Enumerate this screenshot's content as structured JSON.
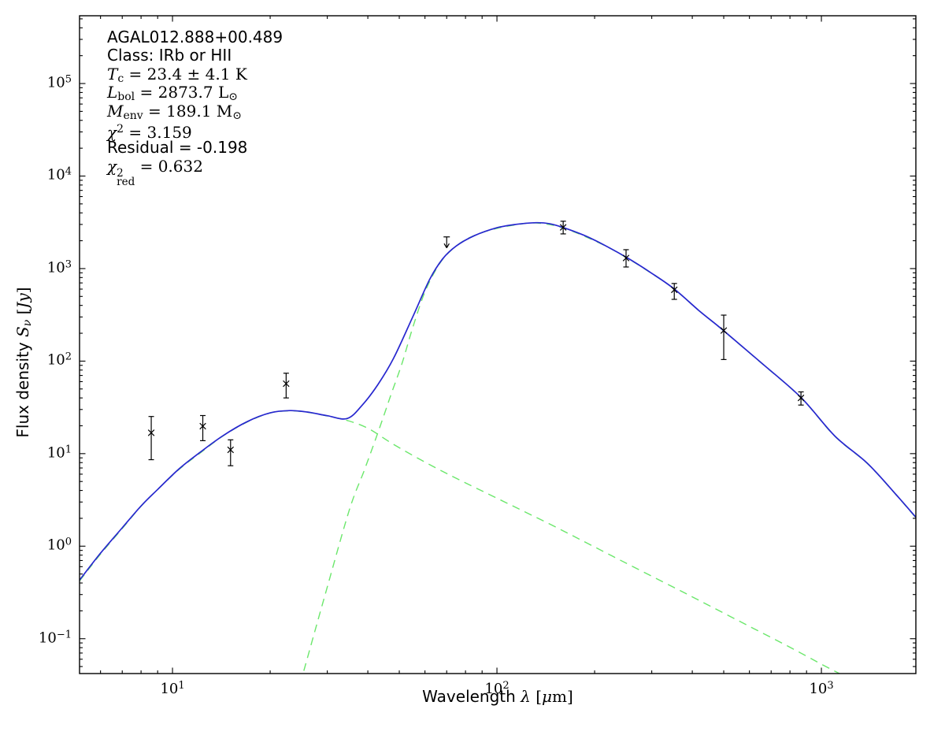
{
  "figure": {
    "background": "#ffffff",
    "frame_color": "#000000",
    "annotation_lines": [
      {
        "name": "source-name",
        "parts": [
          {
            "t": "AGAL012.888+00.489",
            "f": "sans"
          }
        ]
      },
      {
        "name": "source-class",
        "parts": [
          {
            "t": "Class: IRb or HII",
            "f": "sans"
          }
        ]
      },
      {
        "name": "dust-temperature",
        "parts": [
          {
            "t": "T",
            "f": "it"
          },
          {
            "t": "c",
            "f": "sub"
          },
          {
            "t": " = 23.4 ± 4.1 K",
            "f": "rm"
          }
        ]
      },
      {
        "name": "bolometric-luminosity",
        "parts": [
          {
            "t": "L",
            "f": "it"
          },
          {
            "t": "bol",
            "f": "sub"
          },
          {
            "t": " = 2873.7 L",
            "f": "rm"
          },
          {
            "t": "⊙",
            "f": "sub"
          }
        ]
      },
      {
        "name": "envelope-mass",
        "parts": [
          {
            "t": "M",
            "f": "it"
          },
          {
            "t": "env",
            "f": "sub"
          },
          {
            "t": " = 189.1 M",
            "f": "rm"
          },
          {
            "t": "⊙",
            "f": "sub"
          }
        ]
      },
      {
        "name": "chi-square",
        "parts": [
          {
            "t": "χ",
            "f": "it"
          },
          {
            "t": "2",
            "f": "sup"
          },
          {
            "t": " = 3.159",
            "f": "rm"
          }
        ]
      },
      {
        "name": "residual",
        "parts": [
          {
            "t": "Residual = -0.198",
            "f": "sans"
          }
        ]
      },
      {
        "name": "reduced-chi-square",
        "parts": [
          {
            "t": "χ",
            "f": "it"
          },
          {
            "t": "2",
            "f": "stack",
            "sub": "red"
          },
          {
            "t": " = 0.632",
            "f": "rm"
          }
        ]
      }
    ],
    "xlabel_parts": [
      {
        "t": "Wavelength ",
        "f": "sans"
      },
      {
        "t": "λ",
        "f": "it"
      },
      {
        "t": " [",
        "f": "rm"
      },
      {
        "t": "μ",
        "f": "it"
      },
      {
        "t": "m]",
        "f": "rm"
      }
    ],
    "ylabel_parts": [
      {
        "t": "Flux density ",
        "f": "sans"
      },
      {
        "t": "S",
        "f": "it"
      },
      {
        "t": "ν",
        "f": "subit"
      },
      {
        "t": " [",
        "f": "rm"
      },
      {
        "t": "Jy",
        "f": "it"
      },
      {
        "t": "]",
        "f": "rm"
      }
    ],
    "x_tick_labels": [
      {
        "value": 10,
        "base": "10",
        "exp": "1"
      },
      {
        "value": 100,
        "base": "10",
        "exp": "2"
      },
      {
        "value": 1000,
        "base": "10",
        "exp": "3"
      }
    ],
    "y_tick_labels": [
      {
        "value": 0.1,
        "base": "10",
        "exp": "−1"
      },
      {
        "value": 1,
        "base": "10",
        "exp": "0"
      },
      {
        "value": 10,
        "base": "10",
        "exp": "1"
      },
      {
        "value": 100,
        "base": "10",
        "exp": "2"
      },
      {
        "value": 1000,
        "base": "10",
        "exp": "3"
      },
      {
        "value": 10000,
        "base": "10",
        "exp": "4"
      },
      {
        "value": 100000,
        "base": "10",
        "exp": "5"
      }
    ]
  },
  "chart_data": {
    "type": "line",
    "title": "AGAL012.888+00.489",
    "xlabel": "Wavelength λ [μm]",
    "ylabel": "Flux density Sν [Jy]",
    "xscale": "log",
    "yscale": "log",
    "xlim": [
      5.17,
      1955
    ],
    "ylim": [
      0.042,
      540000
    ],
    "grid": false,
    "legend": "none",
    "colors": {
      "total_fit": "#2727cf",
      "components": "#6be76b",
      "data_points": "#000000",
      "frame": "#000000"
    },
    "series": [
      {
        "name": "cold-component-greybody",
        "type": "line",
        "style": "dashed",
        "color": "#6be76b",
        "points": [
          [
            25.4,
            0.045
          ],
          [
            29.3,
            0.27
          ],
          [
            35,
            2.4
          ],
          [
            39,
            6.6
          ],
          [
            43,
            17
          ],
          [
            47,
            42
          ],
          [
            51,
            95
          ],
          [
            55,
            230
          ],
          [
            60,
            560
          ],
          [
            66,
            1080
          ],
          [
            72,
            1560
          ],
          [
            80,
            2050
          ],
          [
            90,
            2450
          ],
          [
            100,
            2720
          ],
          [
            115,
            2980
          ],
          [
            132,
            3110
          ],
          [
            160,
            2750
          ],
          [
            207,
            1890
          ],
          [
            250,
            1320
          ],
          [
            300,
            885
          ],
          [
            352,
            600
          ],
          [
            420,
            349
          ],
          [
            500,
            212
          ],
          [
            650,
            96.5
          ],
          [
            865,
            40.2
          ],
          [
            1100,
            15.4
          ],
          [
            1384,
            7.85
          ],
          [
            1700,
            3.58
          ],
          [
            1955,
            2.03
          ]
        ]
      },
      {
        "name": "hot-component-blackbody",
        "type": "line",
        "style": "dashed",
        "color": "#6be76b",
        "points": [
          [
            5.17,
            0.42
          ],
          [
            6,
            0.82
          ],
          [
            7,
            1.55
          ],
          [
            8,
            2.7
          ],
          [
            9,
            4.1
          ],
          [
            10.5,
            6.8
          ],
          [
            12.1,
            10
          ],
          [
            14.3,
            15.5
          ],
          [
            17,
            22
          ],
          [
            20,
            27.5
          ],
          [
            23,
            29
          ],
          [
            26,
            28
          ],
          [
            30,
            25.5
          ],
          [
            34.6,
            22.8
          ],
          [
            40,
            18.8
          ],
          [
            48,
            12.6
          ],
          [
            60,
            8.1
          ],
          [
            75,
            5.4
          ],
          [
            100,
            3.3
          ],
          [
            148,
            1.68
          ],
          [
            200,
            0.98
          ],
          [
            258,
            0.62
          ],
          [
            350,
            0.36
          ],
          [
            451,
            0.228
          ],
          [
            600,
            0.136
          ],
          [
            789,
            0.083
          ],
          [
            1000,
            0.053
          ],
          [
            1137,
            0.042
          ]
        ]
      },
      {
        "name": "total-fit",
        "type": "line",
        "style": "solid",
        "color": "#2727cf",
        "points": [
          [
            5.17,
            0.43
          ],
          [
            6,
            0.84
          ],
          [
            7,
            1.58
          ],
          [
            8,
            2.72
          ],
          [
            9,
            4.1
          ],
          [
            10.5,
            6.9
          ],
          [
            12.1,
            10.2
          ],
          [
            14.3,
            15.6
          ],
          [
            17,
            22.2
          ],
          [
            20,
            27.6
          ],
          [
            23,
            29.2
          ],
          [
            26,
            28.2
          ],
          [
            30,
            25.7
          ],
          [
            34.6,
            24
          ],
          [
            38.6,
            34
          ],
          [
            43,
            56
          ],
          [
            48,
            107
          ],
          [
            55,
            300
          ],
          [
            62,
            760
          ],
          [
            68,
            1270
          ],
          [
            75,
            1760
          ],
          [
            85,
            2260
          ],
          [
            100,
            2760
          ],
          [
            115,
            3010
          ],
          [
            132,
            3130
          ],
          [
            145,
            3060
          ],
          [
            160,
            2780
          ],
          [
            185,
            2300
          ],
          [
            207,
            1910
          ],
          [
            250,
            1330
          ],
          [
            300,
            890
          ],
          [
            352,
            602
          ],
          [
            420,
            350
          ],
          [
            500,
            213
          ],
          [
            650,
            97
          ],
          [
            865,
            40.5
          ],
          [
            1100,
            15.5
          ],
          [
            1384,
            7.9
          ],
          [
            1700,
            3.6
          ],
          [
            1955,
            2.05
          ]
        ]
      },
      {
        "name": "photometry",
        "type": "scatter",
        "marker": "x",
        "color": "#000000",
        "points": [
          {
            "wavelength_um": 8.6,
            "flux_jy": 16.8,
            "flux_lo_jy": 8.6,
            "flux_hi_jy": 25.2
          },
          {
            "wavelength_um": 12.4,
            "flux_jy": 19.8,
            "flux_lo_jy": 13.8,
            "flux_hi_jy": 25.8
          },
          {
            "wavelength_um": 15.1,
            "flux_jy": 11.0,
            "flux_lo_jy": 7.4,
            "flux_hi_jy": 14.1
          },
          {
            "wavelength_um": 22.4,
            "flux_jy": 57,
            "flux_lo_jy": 40,
            "flux_hi_jy": 74
          },
          {
            "wavelength_um": 160,
            "flux_jy": 2790,
            "flux_lo_jy": 2370,
            "flux_hi_jy": 3250
          },
          {
            "wavelength_um": 250,
            "flux_jy": 1300,
            "flux_lo_jy": 1040,
            "flux_hi_jy": 1600
          },
          {
            "wavelength_um": 352,
            "flux_jy": 590,
            "flux_lo_jy": 465,
            "flux_hi_jy": 690
          },
          {
            "wavelength_um": 500,
            "flux_jy": 214,
            "flux_lo_jy": 104,
            "flux_hi_jy": 314
          },
          {
            "wavelength_um": 865,
            "flux_jy": 40,
            "flux_lo_jy": 33.5,
            "flux_hi_jy": 46.5
          }
        ]
      },
      {
        "name": "upper-limit",
        "type": "upper_limit",
        "color": "#000000",
        "points": [
          {
            "wavelength_um": 70,
            "flux_jy": 2200
          }
        ]
      }
    ],
    "annotations": [
      "AGAL012.888+00.489",
      "Class: IRb or HII",
      "Tc = 23.4 ± 4.1 K",
      "Lbol = 2873.7 L☉",
      "Menv = 189.1 M☉",
      "χ² = 3.159",
      "Residual = -0.198",
      "χ²red = 0.632"
    ]
  }
}
